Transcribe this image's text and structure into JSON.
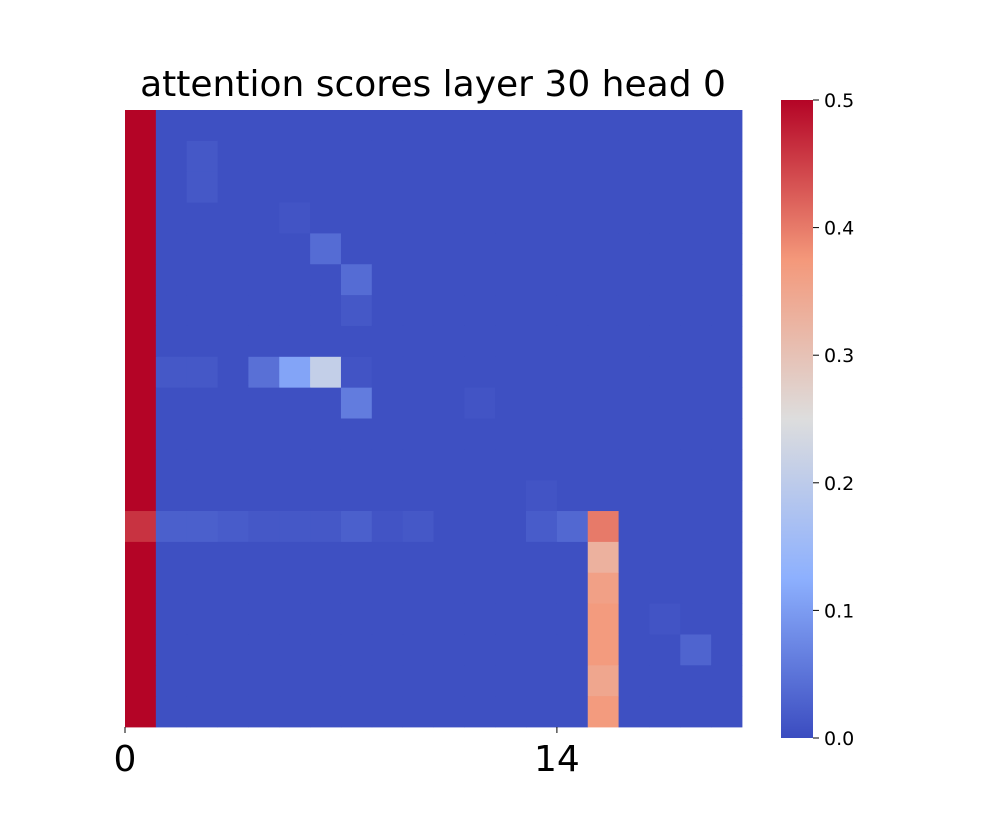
{
  "chart_data": {
    "type": "heatmap",
    "title": "attention scores layer 30 head 0",
    "x_tick_labels": [
      "0",
      "14"
    ],
    "x_tick_indices": [
      0,
      14
    ],
    "n_cols": 20,
    "n_rows": 20,
    "colormap": "coolwarm",
    "value_range": [
      0.0,
      0.5
    ],
    "colorbar_ticks": [
      "0.0",
      "0.1",
      "0.2",
      "0.3",
      "0.4",
      "0.5"
    ],
    "colorbar_tick_values": [
      0.0,
      0.1,
      0.2,
      0.3,
      0.4,
      0.5
    ],
    "grid": false,
    "colorbar_position": "right",
    "values": [
      [
        0.5,
        0.005,
        0.005,
        0.005,
        0.005,
        0.005,
        0.005,
        0.005,
        0.005,
        0.005,
        0.005,
        0.005,
        0.005,
        0.005,
        0.005,
        0.005,
        0.005,
        0.005,
        0.005,
        0.005
      ],
      [
        0.5,
        0.005,
        0.015,
        0.005,
        0.005,
        0.005,
        0.005,
        0.005,
        0.005,
        0.005,
        0.005,
        0.005,
        0.005,
        0.005,
        0.005,
        0.005,
        0.005,
        0.005,
        0.005,
        0.005
      ],
      [
        0.5,
        0.005,
        0.015,
        0.005,
        0.005,
        0.005,
        0.005,
        0.005,
        0.005,
        0.005,
        0.005,
        0.005,
        0.005,
        0.005,
        0.005,
        0.005,
        0.005,
        0.005,
        0.005,
        0.005
      ],
      [
        0.5,
        0.005,
        0.005,
        0.005,
        0.005,
        0.01,
        0.005,
        0.005,
        0.005,
        0.005,
        0.005,
        0.005,
        0.005,
        0.005,
        0.005,
        0.005,
        0.005,
        0.005,
        0.005,
        0.005
      ],
      [
        0.5,
        0.005,
        0.005,
        0.005,
        0.005,
        0.005,
        0.04,
        0.005,
        0.005,
        0.005,
        0.005,
        0.005,
        0.005,
        0.005,
        0.005,
        0.005,
        0.005,
        0.005,
        0.005,
        0.005
      ],
      [
        0.5,
        0.005,
        0.005,
        0.005,
        0.005,
        0.005,
        0.005,
        0.04,
        0.005,
        0.005,
        0.005,
        0.005,
        0.005,
        0.005,
        0.005,
        0.005,
        0.005,
        0.005,
        0.005,
        0.005
      ],
      [
        0.5,
        0.005,
        0.005,
        0.005,
        0.005,
        0.005,
        0.005,
        0.015,
        0.005,
        0.005,
        0.005,
        0.005,
        0.005,
        0.005,
        0.005,
        0.005,
        0.005,
        0.005,
        0.005,
        0.005
      ],
      [
        0.5,
        0.005,
        0.005,
        0.005,
        0.005,
        0.005,
        0.005,
        0.005,
        0.005,
        0.005,
        0.005,
        0.005,
        0.005,
        0.005,
        0.005,
        0.005,
        0.005,
        0.005,
        0.005,
        0.005
      ],
      [
        0.5,
        0.015,
        0.015,
        0.005,
        0.045,
        0.11,
        0.21,
        0.01,
        0.005,
        0.005,
        0.005,
        0.005,
        0.005,
        0.005,
        0.005,
        0.005,
        0.005,
        0.005,
        0.005,
        0.005
      ],
      [
        0.5,
        0.005,
        0.005,
        0.005,
        0.005,
        0.005,
        0.005,
        0.06,
        0.005,
        0.005,
        0.005,
        0.01,
        0.005,
        0.005,
        0.005,
        0.005,
        0.005,
        0.005,
        0.005,
        0.005
      ],
      [
        0.5,
        0.005,
        0.005,
        0.005,
        0.005,
        0.005,
        0.005,
        0.005,
        0.005,
        0.005,
        0.005,
        0.005,
        0.005,
        0.005,
        0.005,
        0.005,
        0.005,
        0.005,
        0.005,
        0.005
      ],
      [
        0.5,
        0.005,
        0.005,
        0.005,
        0.005,
        0.005,
        0.005,
        0.005,
        0.005,
        0.005,
        0.005,
        0.005,
        0.005,
        0.005,
        0.005,
        0.005,
        0.005,
        0.005,
        0.005,
        0.005
      ],
      [
        0.5,
        0.005,
        0.005,
        0.005,
        0.005,
        0.005,
        0.005,
        0.005,
        0.005,
        0.005,
        0.005,
        0.005,
        0.005,
        0.01,
        0.005,
        0.005,
        0.005,
        0.005,
        0.005,
        0.005
      ],
      [
        0.46,
        0.025,
        0.025,
        0.02,
        0.015,
        0.015,
        0.015,
        0.025,
        0.01,
        0.015,
        0.005,
        0.005,
        0.005,
        0.02,
        0.035,
        0.4,
        0.005,
        0.005,
        0.005,
        0.005
      ],
      [
        0.5,
        0.005,
        0.005,
        0.005,
        0.005,
        0.005,
        0.005,
        0.005,
        0.005,
        0.005,
        0.005,
        0.005,
        0.005,
        0.005,
        0.005,
        0.33,
        0.005,
        0.005,
        0.005,
        0.005
      ],
      [
        0.5,
        0.005,
        0.005,
        0.005,
        0.005,
        0.005,
        0.005,
        0.005,
        0.005,
        0.005,
        0.005,
        0.005,
        0.005,
        0.005,
        0.005,
        0.36,
        0.005,
        0.005,
        0.005,
        0.005
      ],
      [
        0.5,
        0.005,
        0.005,
        0.005,
        0.005,
        0.005,
        0.005,
        0.005,
        0.005,
        0.005,
        0.005,
        0.005,
        0.005,
        0.005,
        0.005,
        0.37,
        0.005,
        0.01,
        0.005,
        0.005
      ],
      [
        0.5,
        0.005,
        0.005,
        0.005,
        0.005,
        0.005,
        0.005,
        0.005,
        0.005,
        0.005,
        0.005,
        0.005,
        0.005,
        0.005,
        0.005,
        0.37,
        0.005,
        0.005,
        0.03,
        0.005
      ],
      [
        0.5,
        0.005,
        0.005,
        0.005,
        0.005,
        0.005,
        0.005,
        0.005,
        0.005,
        0.005,
        0.005,
        0.005,
        0.005,
        0.005,
        0.005,
        0.35,
        0.005,
        0.005,
        0.005,
        0.005
      ],
      [
        0.5,
        0.005,
        0.005,
        0.005,
        0.005,
        0.005,
        0.005,
        0.005,
        0.005,
        0.005,
        0.005,
        0.005,
        0.005,
        0.005,
        0.005,
        0.37,
        0.005,
        0.005,
        0.005,
        0.005
      ]
    ]
  }
}
